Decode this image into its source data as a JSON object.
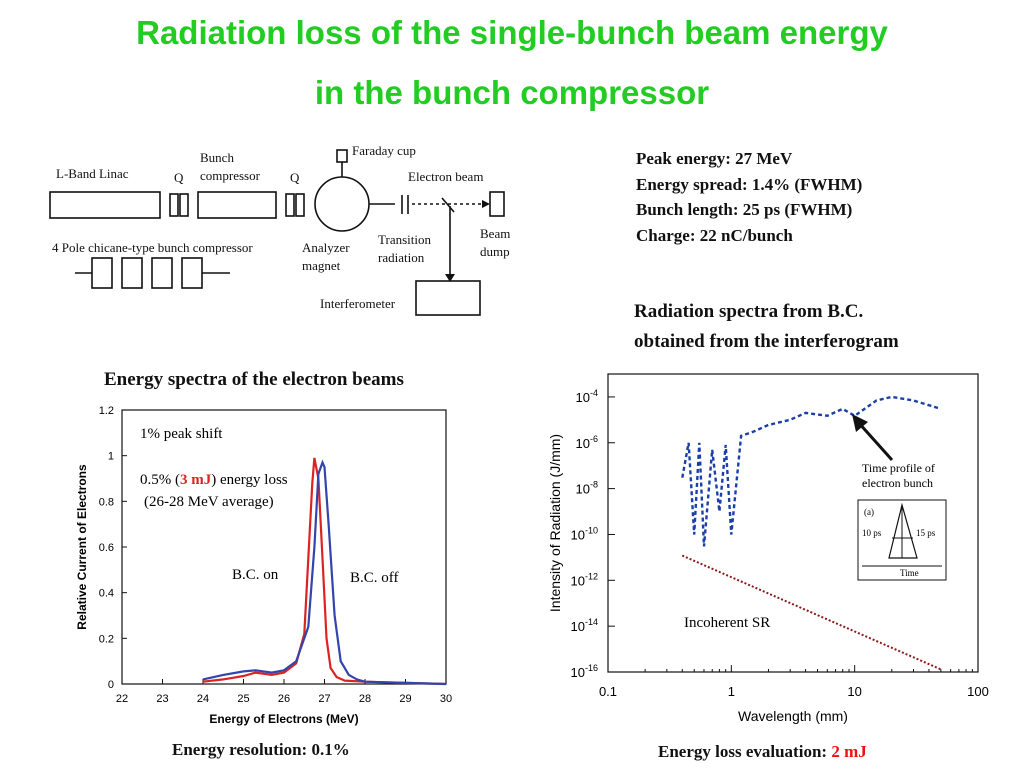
{
  "title_line1": "Radiation loss of the single-bunch beam energy",
  "title_line2": "in the bunch compressor",
  "params": [
    "Peak energy: 27 MeV",
    "Energy spread: 1.4% (FWHM)",
    "Bunch length: 25 ps (FWHM)",
    "Charge: 22 nC/bunch"
  ],
  "schematic": {
    "linac": "L-Band Linac",
    "q1": "Q",
    "q2": "Q",
    "bc1": "Bunch",
    "bc2": "compressor",
    "faraday": "Faraday cup",
    "ebeam": "Electron beam",
    "chicane": "4 Pole chicane-type bunch compressor",
    "analyzer1": "Analyzer",
    "analyzer2": "magnet",
    "tr1": "Transition",
    "tr2": "radiation",
    "dump1": "Beam",
    "dump2": "dump",
    "interf": "Interferometer"
  },
  "left_caption": "Energy spectra of the electron beams",
  "right_caption_1": "Radiation spectra from B.C.",
  "right_caption_2": "obtained from the interferogram",
  "footer_left": "Energy resolution: 0.1%",
  "footer_right_prefix": "Energy loss evaluation:",
  "footer_right_value": "2 mJ",
  "colors": {
    "title": "#22cc22",
    "bc_on": "#dd2222",
    "bc_off": "#3344aa",
    "highlight": "#dd2222",
    "measured": "#1a3fa8",
    "incoherent": "#8b1a1a"
  },
  "chart_data": [
    {
      "type": "line",
      "xlabel": "Energy of Electrons (MeV)",
      "ylabel": "Relative Current of Electrons",
      "xlim": [
        22,
        30
      ],
      "ylim": [
        0,
        1.2
      ],
      "xticks": [
        "22",
        "23",
        "24",
        "25",
        "26",
        "27",
        "28",
        "29",
        "30"
      ],
      "yticks": [
        "0",
        "0.2",
        "0.4",
        "0.6",
        "0.8",
        "1",
        "1.2"
      ],
      "annotations": {
        "shift": "1% peak shift",
        "loss_pre": "0.5% (",
        "loss_hi": "3 mJ",
        "loss_post": ") energy loss",
        "avg": "(26-28 MeV average)"
      },
      "series": [
        {
          "name": "B.C. on",
          "x": [
            24.0,
            24.5,
            25.0,
            25.3,
            25.7,
            26.0,
            26.3,
            26.5,
            26.6,
            26.7,
            26.75,
            26.85,
            26.95,
            27.05,
            27.15,
            27.3,
            27.5,
            28.0,
            29.0,
            30.0
          ],
          "y": [
            0.01,
            0.02,
            0.035,
            0.05,
            0.04,
            0.05,
            0.09,
            0.22,
            0.55,
            0.88,
            0.99,
            0.9,
            0.55,
            0.2,
            0.07,
            0.03,
            0.015,
            0.01,
            0.005,
            0.0
          ]
        },
        {
          "name": "B.C. off",
          "x": [
            24.0,
            24.5,
            25.0,
            25.3,
            25.7,
            26.0,
            26.3,
            26.6,
            26.75,
            26.85,
            26.95,
            27.0,
            27.1,
            27.25,
            27.4,
            27.6,
            27.8,
            28.0,
            29.0,
            30.0
          ],
          "y": [
            0.02,
            0.04,
            0.055,
            0.06,
            0.05,
            0.06,
            0.1,
            0.25,
            0.6,
            0.92,
            0.97,
            0.95,
            0.7,
            0.3,
            0.1,
            0.04,
            0.02,
            0.01,
            0.005,
            0.0
          ]
        }
      ]
    },
    {
      "type": "line",
      "xlabel": "Wavelength (mm)",
      "ylabel": "Intensity of Radiation (J/mm)",
      "xscale": "log",
      "yscale": "log",
      "xlim": [
        0.1,
        100
      ],
      "ylim": [
        1e-16,
        0.001
      ],
      "xticks": [
        "0.1",
        "1",
        "10",
        "100"
      ],
      "yticks": [
        {
          "b": "10",
          "e": "-4"
        },
        {
          "b": "10",
          "e": "-6"
        },
        {
          "b": "10",
          "e": "-8"
        },
        {
          "b": "10",
          "e": "-10"
        },
        {
          "b": "10",
          "e": "-12"
        },
        {
          "b": "10",
          "e": "-14"
        },
        {
          "b": "10",
          "e": "-16"
        }
      ],
      "annotations": {
        "incoherent": "Incoherent SR",
        "arrow1": "Time profile of",
        "arrow2": "electron bunch",
        "inset_a": "(a)",
        "inset_l": "10 ps",
        "inset_r": "15 ps",
        "inset_t": "Time"
      },
      "series": [
        {
          "name": "measured",
          "x": [
            0.4,
            0.45,
            0.5,
            0.55,
            0.6,
            0.7,
            0.8,
            0.9,
            1.0,
            1.2,
            1.5,
            2.0,
            3.0,
            4.0,
            6.0,
            8.0,
            10,
            15,
            20,
            30,
            50
          ],
          "y": [
            3e-08,
            1e-06,
            1e-10,
            1e-06,
            3e-11,
            5e-07,
            1e-09,
            8e-07,
            1e-10,
            2e-06,
            3e-06,
            6e-06,
            1e-05,
            2e-05,
            1.5e-05,
            3e-05,
            1.5e-05,
            7e-05,
            0.0001,
            7e-05,
            3e-05
          ]
        },
        {
          "name": "Incoherent SR",
          "x": [
            0.4,
            50
          ],
          "y": [
            1.2e-11,
            1.3e-16
          ]
        }
      ]
    }
  ]
}
